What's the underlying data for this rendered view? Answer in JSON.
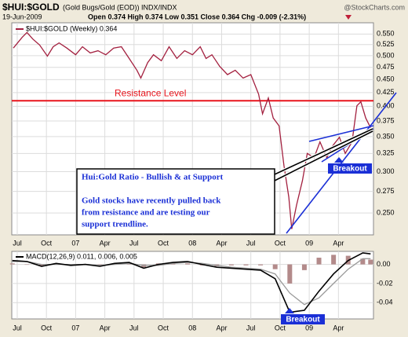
{
  "chart_data": [
    {
      "type": "line",
      "title": "$HUI:$GOLD",
      "subtitle": "(Gold Bugs/Gold (EOD)) INDX/INDX",
      "date": "19-Jun-2009",
      "quote": "Open 0.374 High 0.374 Low 0.351 Close 0.364 Chg -0.009 (-2.31%)",
      "source": "@StockCharts.com",
      "log_scale": true,
      "grid": true,
      "xlim": [
        -0.56,
        36.6
      ],
      "xticks": [
        {
          "value": 0,
          "label": "Jul"
        },
        {
          "value": 3,
          "label": "Oct"
        },
        {
          "value": 6,
          "label": "07"
        },
        {
          "value": 9,
          "label": "Apr"
        },
        {
          "value": 12,
          "label": "Jul"
        },
        {
          "value": 15,
          "label": "Oct"
        },
        {
          "value": 18,
          "label": "08"
        },
        {
          "value": 21,
          "label": "Apr"
        },
        {
          "value": 24,
          "label": "Jul"
        },
        {
          "value": 27,
          "label": "Oct"
        },
        {
          "value": 30,
          "label": "09"
        },
        {
          "value": 33,
          "label": "Apr"
        }
      ],
      "ylim": [
        0.227,
        0.578
      ],
      "yticks": [
        {
          "value": 0.25,
          "label": "0.250"
        },
        {
          "value": 0.275,
          "label": "0.275"
        },
        {
          "value": 0.3,
          "label": "0.300"
        },
        {
          "value": 0.325,
          "label": "0.325"
        },
        {
          "value": 0.35,
          "label": "0.350"
        },
        {
          "value": 0.375,
          "label": "0.375"
        },
        {
          "value": 0.4,
          "label": "0.400"
        },
        {
          "value": 0.425,
          "label": "0.425"
        },
        {
          "value": 0.45,
          "label": "0.450"
        },
        {
          "value": 0.475,
          "label": "0.475"
        },
        {
          "value": 0.5,
          "label": "0.500"
        },
        {
          "value": 0.525,
          "label": "0.525"
        },
        {
          "value": 0.55,
          "label": "0.550"
        }
      ],
      "x": [
        -0.4,
        0.5,
        1.0,
        1.6,
        2.3,
        3.1,
        3.7,
        4.3,
        5.1,
        6.0,
        6.7,
        7.5,
        8.3,
        9.1,
        9.9,
        10.7,
        11.5,
        12.3,
        12.7,
        13.4,
        14.0,
        14.8,
        15.6,
        16.4,
        17.2,
        18.0,
        18.8,
        19.4,
        20.0,
        20.8,
        21.6,
        22.4,
        23.2,
        24.0,
        24.8,
        25.2,
        25.8,
        26.3,
        26.9,
        27.4,
        27.9,
        28.2,
        28.7,
        29.3,
        29.8,
        30.5,
        31.1,
        31.8,
        32.4,
        33.1,
        33.7,
        34.4,
        34.9,
        35.3,
        35.8,
        36.3
      ],
      "series": [
        {
          "name": "$HUI:$GOLD (Weekly) 0.364",
          "color": "#a3203f",
          "values": [
            0.517,
            0.542,
            0.554,
            0.538,
            0.524,
            0.499,
            0.52,
            0.529,
            0.517,
            0.502,
            0.52,
            0.506,
            0.511,
            0.502,
            0.517,
            0.52,
            0.494,
            0.469,
            0.453,
            0.485,
            0.502,
            0.489,
            0.52,
            0.494,
            0.511,
            0.502,
            0.52,
            0.494,
            0.502,
            0.477,
            0.46,
            0.469,
            0.453,
            0.46,
            0.422,
            0.387,
            0.415,
            0.38,
            0.367,
            0.308,
            0.268,
            0.233,
            0.259,
            0.288,
            0.325,
            0.319,
            0.342,
            0.319,
            0.336,
            0.349,
            0.325,
            0.342,
            0.401,
            0.408,
            0.38,
            0.364
          ]
        }
      ],
      "resistance": {
        "label": "Resistance Level",
        "value": 0.41,
        "color": "#e8141c"
      },
      "annotations": {
        "callout_title": "Hui:Gold Ratio - Bullish & at Support",
        "callout_lines": [
          "Gold stocks have recently pulled back",
          "from resistance and are testing our",
          "support trendline."
        ],
        "breakout": "Breakout"
      }
    },
    {
      "type": "line",
      "title": "MACD(12,26,9) 0.011, 0.006, 0.005",
      "grid": true,
      "xlim": [
        -0.56,
        36.6
      ],
      "xticks": [
        {
          "value": 0,
          "label": "Jul"
        },
        {
          "value": 3,
          "label": "Oct"
        },
        {
          "value": 6,
          "label": "07"
        },
        {
          "value": 9,
          "label": "Apr"
        },
        {
          "value": 12,
          "label": "Jul"
        },
        {
          "value": 15,
          "label": "Oct"
        },
        {
          "value": 18,
          "label": "08"
        },
        {
          "value": 21,
          "label": "Apr"
        },
        {
          "value": 24,
          "label": "Jul"
        },
        {
          "value": 27,
          "label": "Oct"
        },
        {
          "value": 30,
          "label": "09"
        },
        {
          "value": 33,
          "label": "Apr"
        }
      ],
      "ylim": [
        -0.057,
        0.0136
      ],
      "yticks": [
        {
          "value": 0,
          "label": "0.00"
        },
        -0.02,
        -0.04
      ],
      "x": [
        -0.5,
        1,
        2.5,
        4,
        5.5,
        7,
        8.5,
        10,
        11.5,
        13,
        14.5,
        16,
        17.5,
        19,
        20.5,
        22,
        23.5,
        25,
        26.5,
        28,
        29.5,
        31,
        32.5,
        34,
        35.5,
        36.3
      ],
      "series": [
        {
          "type": "bar",
          "color": "#b38a8a",
          "values": [
            0.001,
            0.0,
            -0.002,
            0.001,
            -0.001,
            0.0,
            -0.001,
            0.001,
            0.001,
            -0.003,
            0.001,
            0.001,
            0.001,
            -0.001,
            -0.002,
            -0.001,
            -0.001,
            -0.001,
            -0.005,
            -0.02,
            -0.006,
            0.007,
            0.01,
            0.009,
            0.006,
            0.005
          ]
        },
        {
          "color": "#999999",
          "values": [
            0.003,
            0.003,
            0.0,
            0.0,
            0.0,
            0.0,
            -0.001,
            0.0,
            0.001,
            -0.001,
            -0.001,
            0.001,
            0.002,
            0.001,
            -0.001,
            -0.003,
            -0.004,
            -0.005,
            -0.01,
            -0.03,
            -0.042,
            -0.035,
            -0.02,
            -0.005,
            0.006,
            0.006
          ]
        },
        {
          "color": "#000000",
          "values": [
            0.004,
            0.003,
            -0.002,
            0.001,
            -0.001,
            0.0,
            -0.002,
            0.001,
            0.002,
            -0.004,
            0.0,
            0.002,
            0.003,
            0.0,
            -0.003,
            -0.004,
            -0.005,
            -0.006,
            -0.015,
            -0.05,
            -0.048,
            -0.028,
            -0.01,
            0.004,
            0.012,
            0.011
          ]
        }
      ],
      "annotations": {
        "breakout": "Breakout"
      }
    }
  ]
}
